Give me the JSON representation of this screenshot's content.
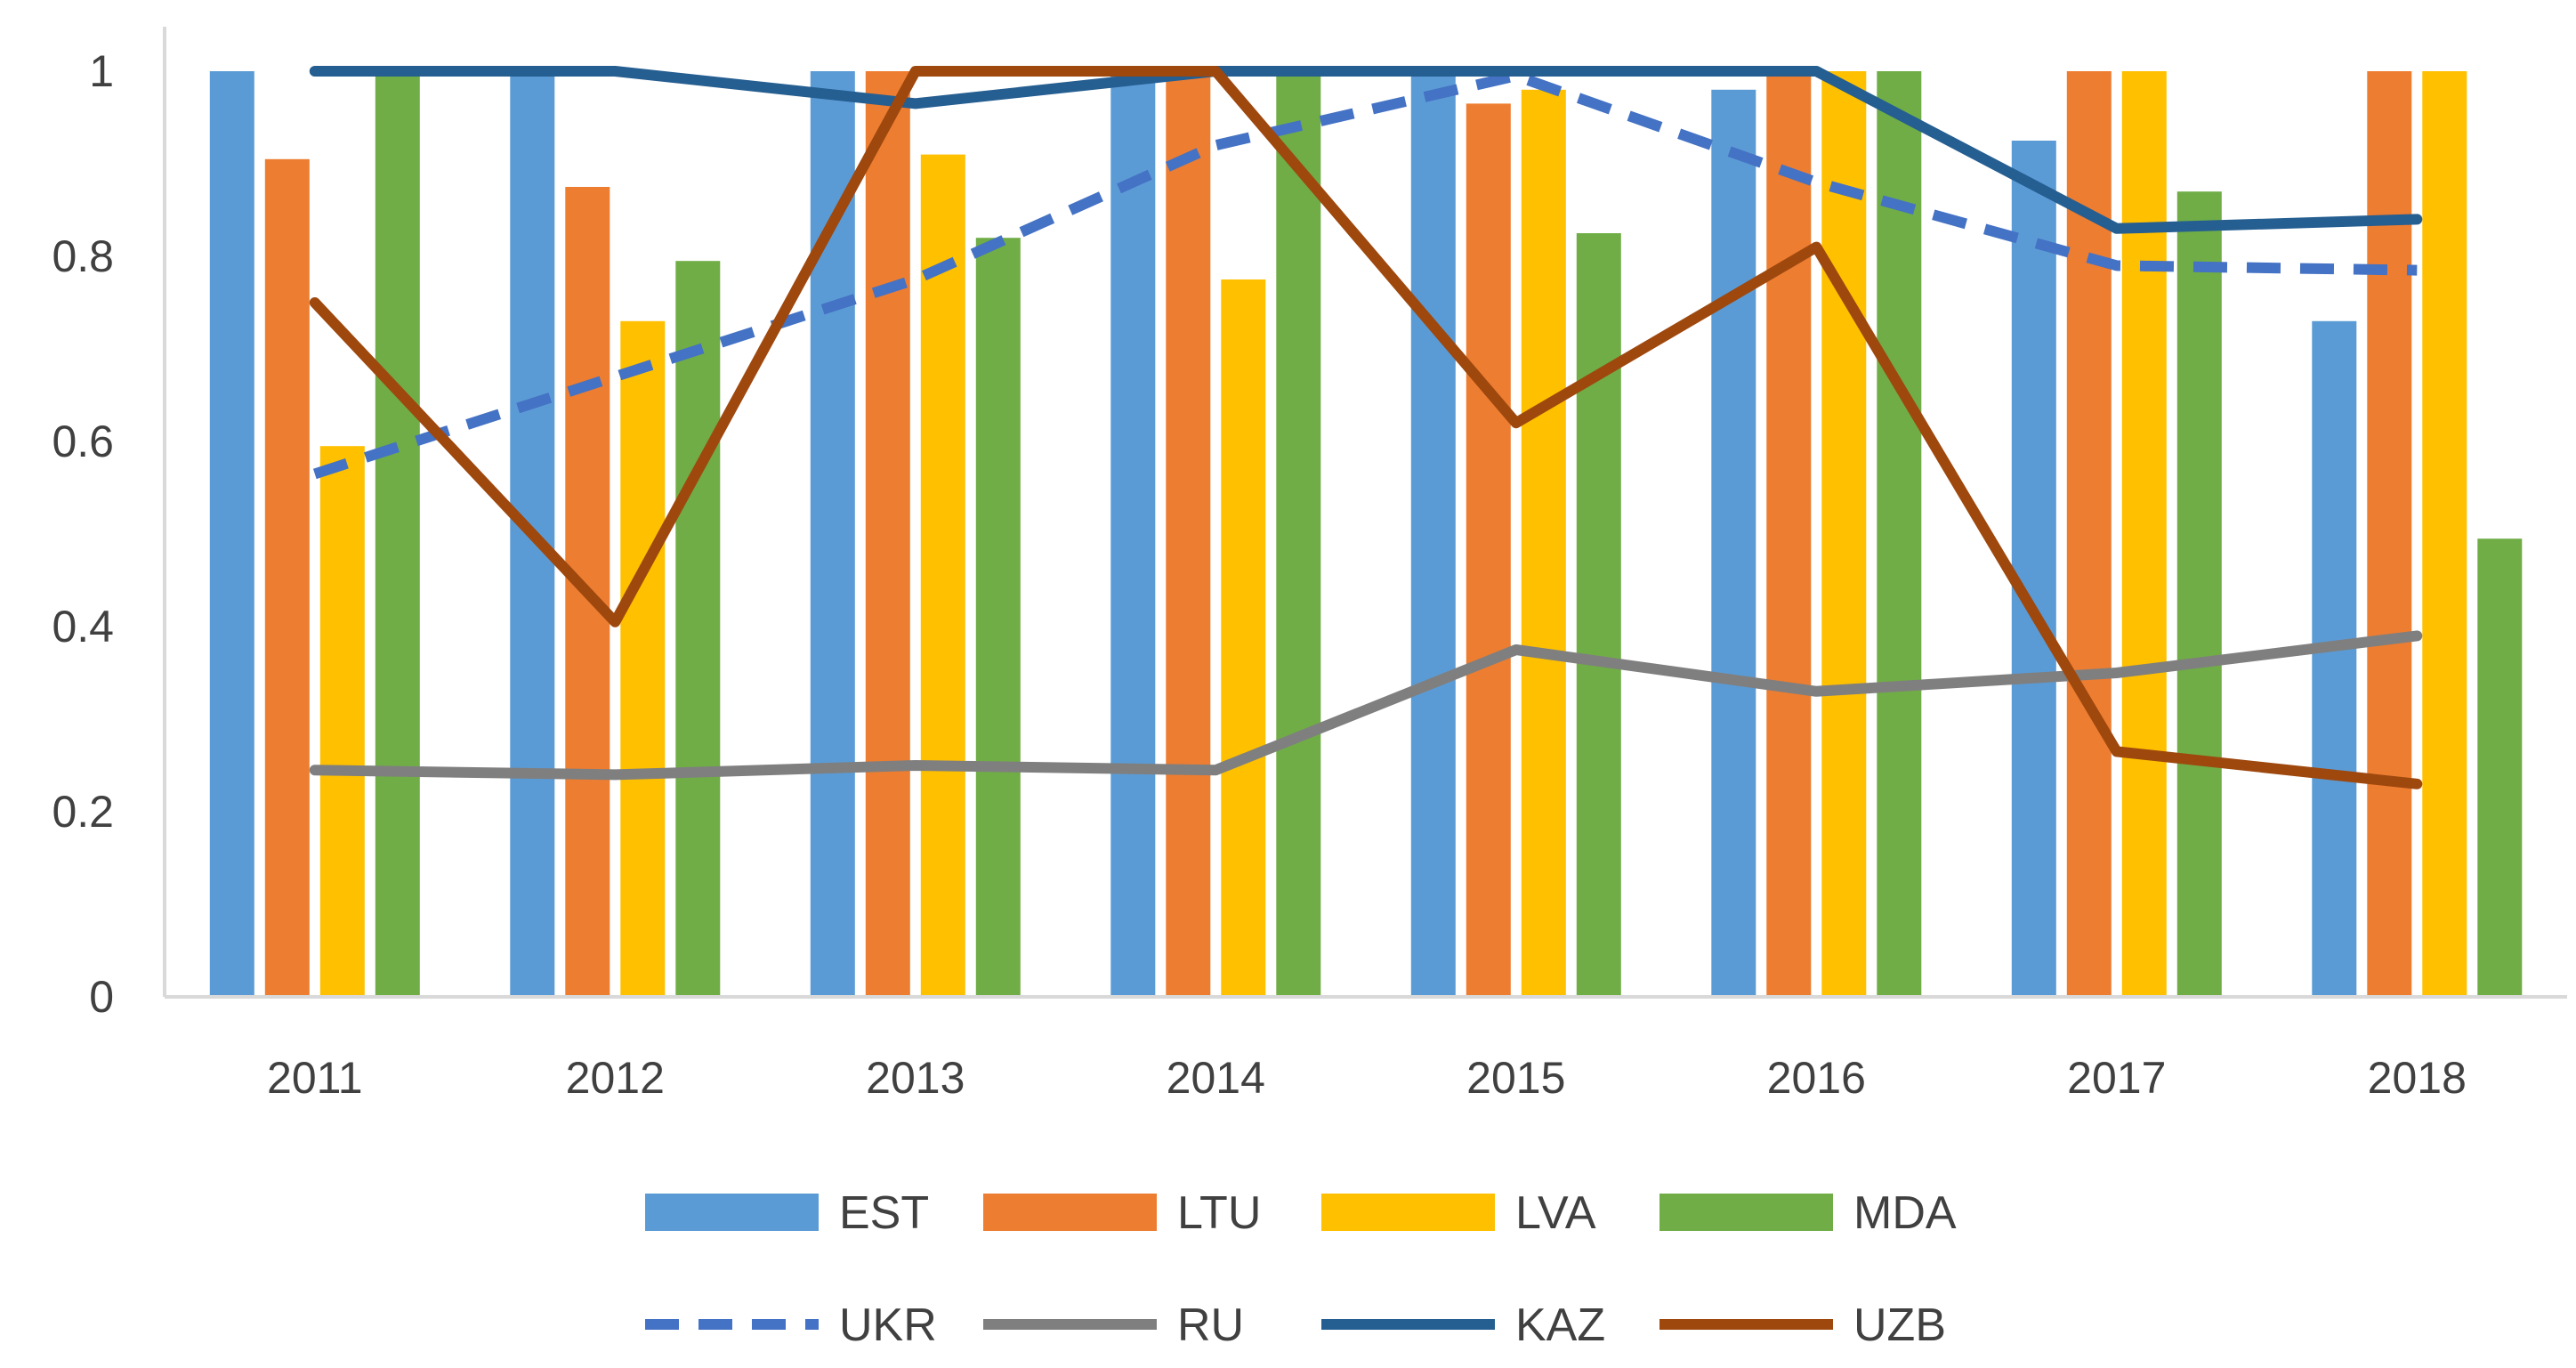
{
  "chart_data": {
    "type": "bar+line",
    "title": "",
    "xlabel": "",
    "ylabel": "",
    "ylim": [
      0,
      1
    ],
    "y_ticks": [
      0,
      0.2,
      0.4,
      0.6,
      0.8,
      1
    ],
    "y_tick_labels": [
      "0",
      "0.2",
      "0.4",
      "0.6",
      "0.8",
      "1"
    ],
    "categories": [
      "2011",
      "2012",
      "2013",
      "2014",
      "2015",
      "2016",
      "2017",
      "2018"
    ],
    "bar_series": [
      {
        "name": "EST",
        "color": "#5B9BD5",
        "values": [
          1.0,
          1.0,
          1.0,
          1.0,
          1.0,
          0.98,
          0.925,
          0.73
        ]
      },
      {
        "name": "LTU",
        "color": "#ED7D31",
        "values": [
          0.905,
          0.875,
          1.0,
          1.0,
          0.965,
          1.0,
          1.0,
          1.0
        ]
      },
      {
        "name": "LVA",
        "color": "#FFC000",
        "values": [
          0.595,
          0.73,
          0.91,
          0.775,
          0.98,
          1.0,
          1.0,
          1.0
        ]
      },
      {
        "name": "MDA",
        "color": "#70AD47",
        "values": [
          1.0,
          0.795,
          0.82,
          1.0,
          0.825,
          1.0,
          0.87,
          0.495
        ]
      }
    ],
    "line_series": [
      {
        "name": "UKR",
        "color": "#4472C4",
        "dashed": true,
        "values": [
          0.565,
          0.67,
          0.775,
          0.92,
          0.995,
          0.88,
          0.79,
          0.785
        ]
      },
      {
        "name": "RU",
        "color": "#7F7F7F",
        "dashed": false,
        "values": [
          0.245,
          0.24,
          0.25,
          0.245,
          0.375,
          0.33,
          0.35,
          0.39
        ]
      },
      {
        "name": "KAZ",
        "color": "#255E91",
        "dashed": false,
        "values": [
          1.0,
          1.0,
          0.965,
          1.0,
          1.0,
          1.0,
          0.83,
          0.84
        ]
      },
      {
        "name": "UZB",
        "color": "#9E480E",
        "dashed": false,
        "values": [
          0.75,
          0.405,
          1.0,
          1.0,
          0.62,
          0.81,
          0.265,
          0.23
        ]
      }
    ],
    "grid": false,
    "legend_position": "bottom"
  }
}
